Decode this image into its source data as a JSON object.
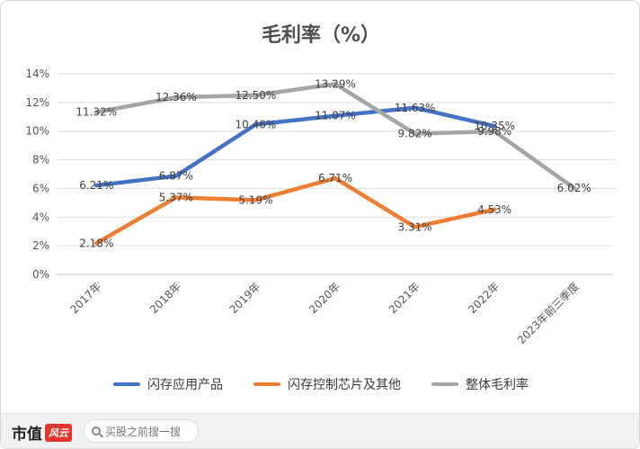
{
  "chart_data": {
    "type": "line",
    "title": "毛利率（%）",
    "categories": [
      "2017年",
      "2018年",
      "2019年",
      "2020年",
      "2021年",
      "2022年",
      "2023年前三季度"
    ],
    "y_ticks": [
      "0%",
      "2%",
      "4%",
      "6%",
      "8%",
      "10%",
      "12%",
      "14%"
    ],
    "ylim": [
      0,
      14
    ],
    "grid": true,
    "legend_position": "bottom",
    "series": [
      {
        "name": "闪存应用产品",
        "color": "#4472c4",
        "values": [
          6.21,
          6.87,
          10.46,
          11.07,
          11.63,
          10.35,
          null
        ],
        "labels": [
          "6.21%",
          "6.87%",
          "10.46%",
          "11.07%",
          "11.63%",
          "10.35%",
          ""
        ]
      },
      {
        "name": "闪存控制芯片及其他",
        "color": "#ed7d31",
        "values": [
          2.18,
          5.37,
          5.19,
          6.71,
          3.31,
          4.53,
          null
        ],
        "labels": [
          "2.18%",
          "5.37%",
          "5.19%",
          "6.71%",
          "3.31%",
          "4.53%",
          ""
        ]
      },
      {
        "name": "整体毛利率",
        "color": "#a5a5a5",
        "values": [
          11.32,
          12.36,
          12.5,
          13.29,
          9.82,
          9.98,
          6.02
        ],
        "labels": [
          "11.32%",
          "12.36%",
          "12.50%",
          "13.29%",
          "9.82%",
          "9.98%",
          "6.02%"
        ]
      }
    ]
  },
  "footer": {
    "brand": "市值",
    "brand_logo": "风云",
    "search_placeholder": "买股之前搜一搜"
  },
  "icons": {
    "search": "search-icon"
  }
}
